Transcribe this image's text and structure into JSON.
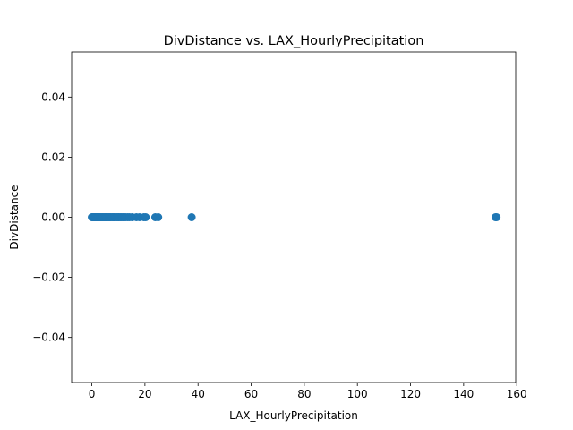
{
  "chart_data": {
    "type": "scatter",
    "title": "DivDistance vs. LAX_HourlyPrecipitation",
    "xlabel": "LAX_HourlyPrecipitation",
    "ylabel": "DivDistance",
    "xlim": [
      -7.6,
      159.6
    ],
    "ylim": [
      -0.055,
      0.055
    ],
    "xticks": [
      0,
      20,
      40,
      60,
      80,
      100,
      120,
      140,
      160
    ],
    "yticks": [
      -0.04,
      -0.02,
      0.0,
      0.02,
      0.04
    ],
    "ytick_labels": [
      "−0.04",
      "−0.02",
      "0.00",
      "0.02",
      "0.04"
    ],
    "grid": false,
    "marker_color": "#1f77b4",
    "x": [
      0,
      0.3,
      0.5,
      0.8,
      1.0,
      1.3,
      1.5,
      1.8,
      2.0,
      2.3,
      2.5,
      2.8,
      3.0,
      3.3,
      3.6,
      4.0,
      4.3,
      4.6,
      5.0,
      5.3,
      5.6,
      6.0,
      6.4,
      6.8,
      7.1,
      7.6,
      8.0,
      8.4,
      8.9,
      9.4,
      9.9,
      10.2,
      10.7,
      11.2,
      11.7,
      12.2,
      12.7,
      13.5,
      14.2,
      15.2,
      16.8,
      18.0,
      19.6,
      20.3,
      23.9,
      25.0,
      37.6,
      152.0,
      152.4
    ],
    "y": [
      0,
      0,
      0,
      0,
      0,
      0,
      0,
      0,
      0,
      0,
      0,
      0,
      0,
      0,
      0,
      0,
      0,
      0,
      0,
      0,
      0,
      0,
      0,
      0,
      0,
      0,
      0,
      0,
      0,
      0,
      0,
      0,
      0,
      0,
      0,
      0,
      0,
      0,
      0,
      0,
      0,
      0,
      0,
      0,
      0,
      0,
      0,
      0,
      0
    ]
  }
}
